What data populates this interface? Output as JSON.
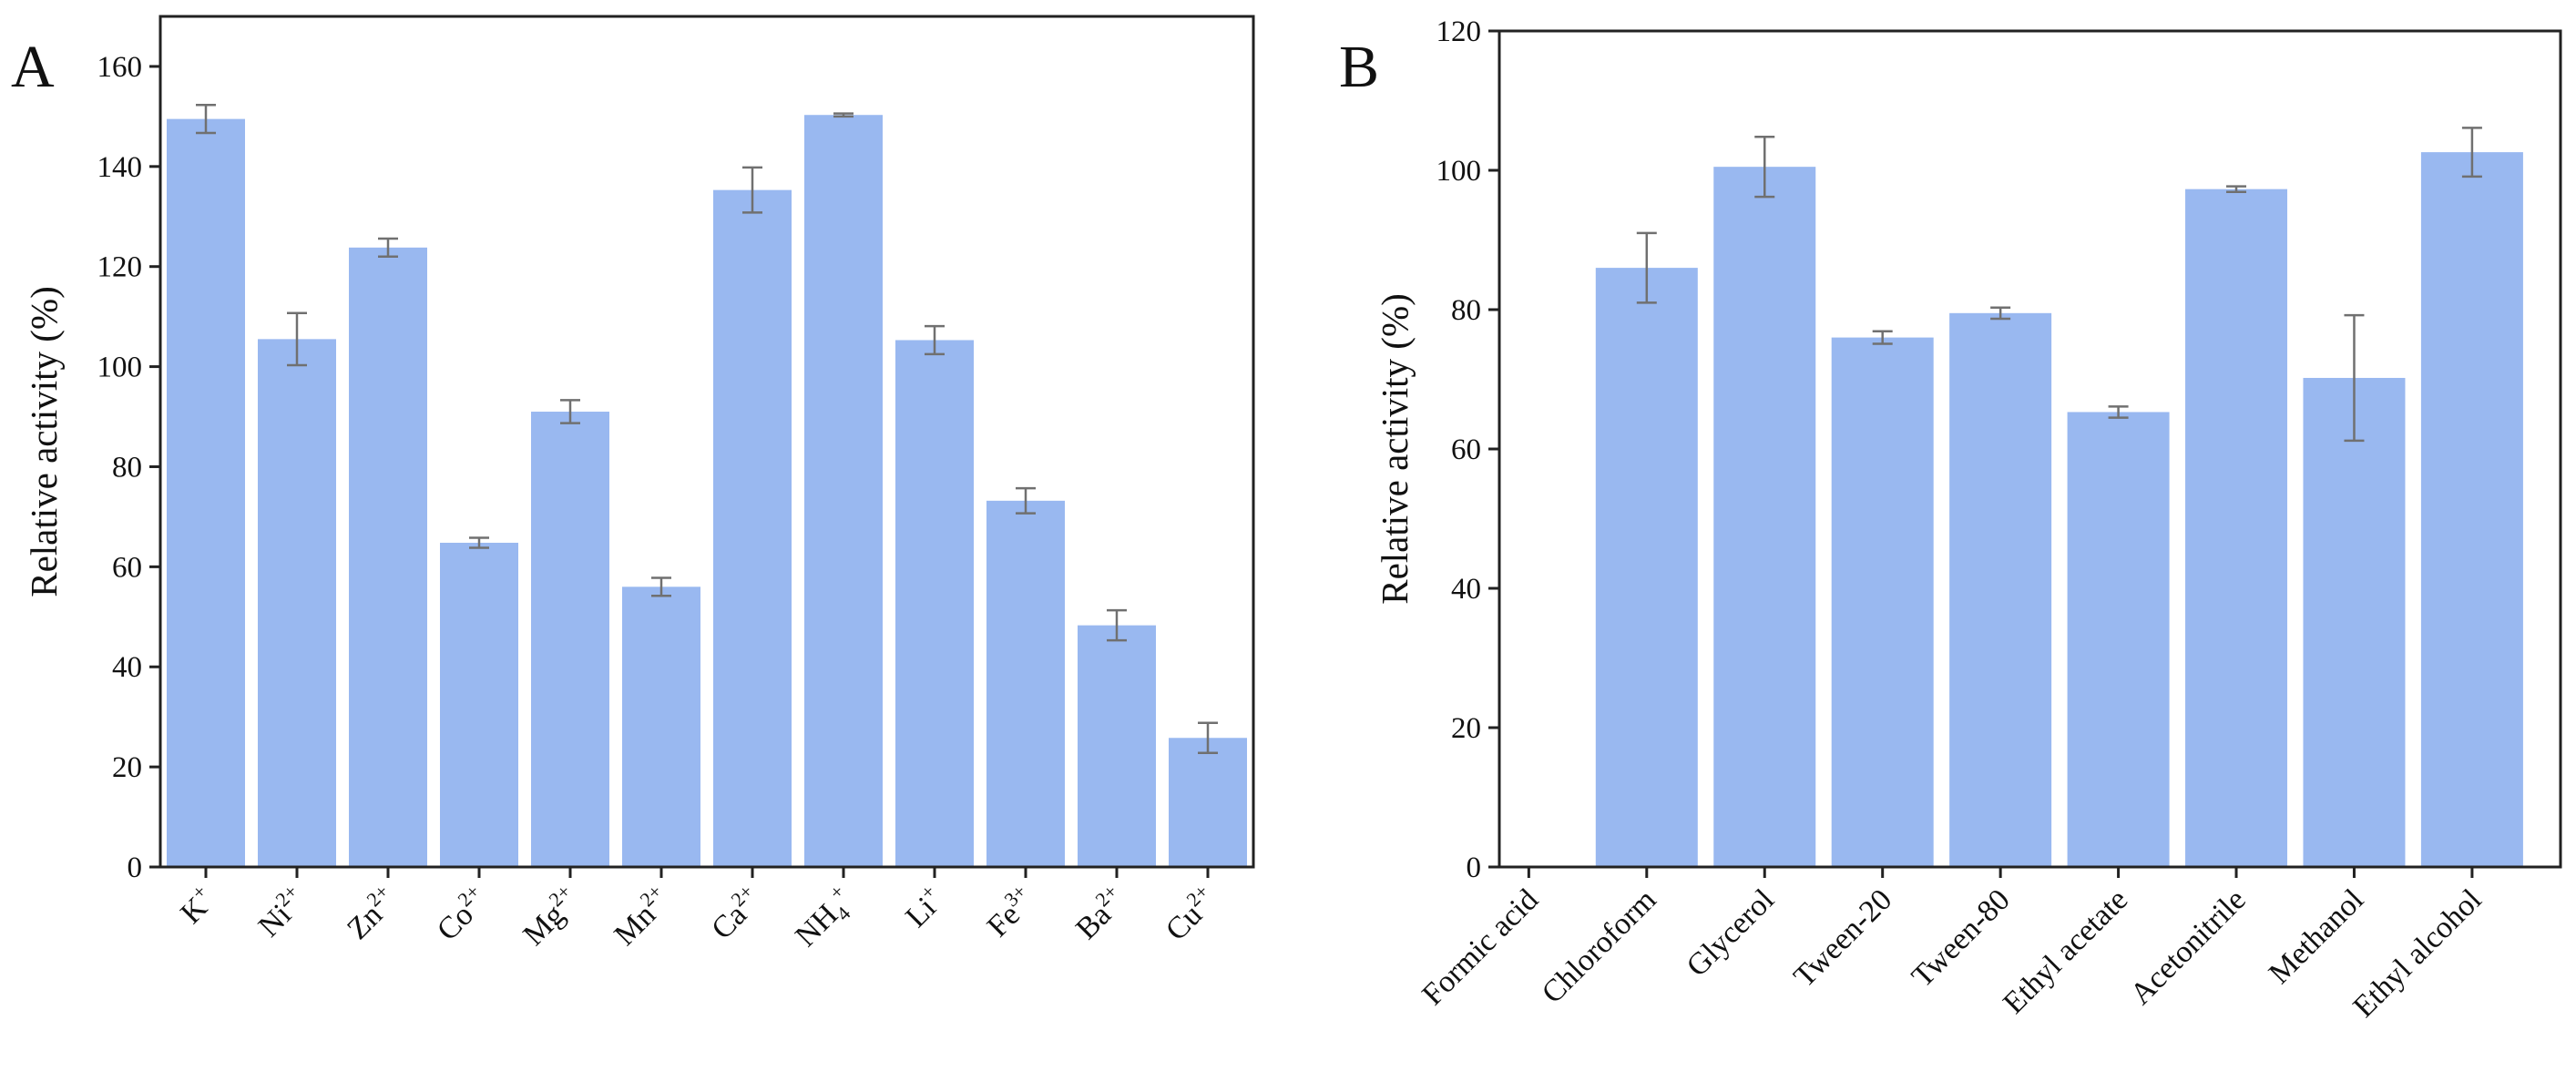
{
  "chart_data": [
    {
      "type": "bar",
      "panel_label": "A",
      "title": "",
      "xlabel": "",
      "ylabel": "Relative activity (%)",
      "ylim": [
        0,
        170
      ],
      "yticks": [
        0,
        20,
        40,
        60,
        80,
        100,
        120,
        140,
        160
      ],
      "bar_color": "#99b8f0",
      "categories": [
        {
          "base": "K",
          "sup": "+"
        },
        {
          "base": "Ni",
          "sup": "2+"
        },
        {
          "base": "Zn",
          "sup": "2+"
        },
        {
          "base": "Co",
          "sup": "2+"
        },
        {
          "base": "Mg",
          "sup": "2+"
        },
        {
          "base": "Mn",
          "sup": "2+"
        },
        {
          "base": "Ca",
          "sup": "2+"
        },
        {
          "base": "NH",
          "sub": "4",
          "sup": "+"
        },
        {
          "base": "Li",
          "sup": "+"
        },
        {
          "base": "Fe",
          "sup": "3+"
        },
        {
          "base": "Ba",
          "sup": "2+"
        },
        {
          "base": "Cu",
          "sup": "2+"
        }
      ],
      "values": [
        149.5,
        105.5,
        123.8,
        64.8,
        91.0,
        56.0,
        135.3,
        150.3,
        105.3,
        73.2,
        48.3,
        25.8
      ],
      "errors": [
        2.8,
        5.2,
        1.8,
        1.0,
        2.3,
        1.8,
        4.5,
        0.3,
        2.8,
        2.5,
        3.0,
        3.0
      ]
    },
    {
      "type": "bar",
      "panel_label": "B",
      "title": "",
      "xlabel": "",
      "ylabel": "Relative activity (%)",
      "ylim": [
        0,
        120
      ],
      "yticks": [
        0,
        20,
        40,
        60,
        80,
        100,
        120
      ],
      "bar_color": "#99b8f0",
      "categories": [
        {
          "base": "Formic acid"
        },
        {
          "base": "Chloroform"
        },
        {
          "base": "Glycerol"
        },
        {
          "base": "Tween-20"
        },
        {
          "base": "Tween-80"
        },
        {
          "base": "Ethyl acetate"
        },
        {
          "base": "Acetonitrile"
        },
        {
          "base": "Methanol"
        },
        {
          "base": "Ethyl alcohol"
        }
      ],
      "values": [
        0,
        86.0,
        100.5,
        76.0,
        79.5,
        65.3,
        97.3,
        70.2,
        102.6
      ],
      "errors": [
        0,
        5.0,
        4.3,
        0.9,
        0.8,
        0.8,
        0.4,
        9.0,
        3.5
      ]
    }
  ]
}
